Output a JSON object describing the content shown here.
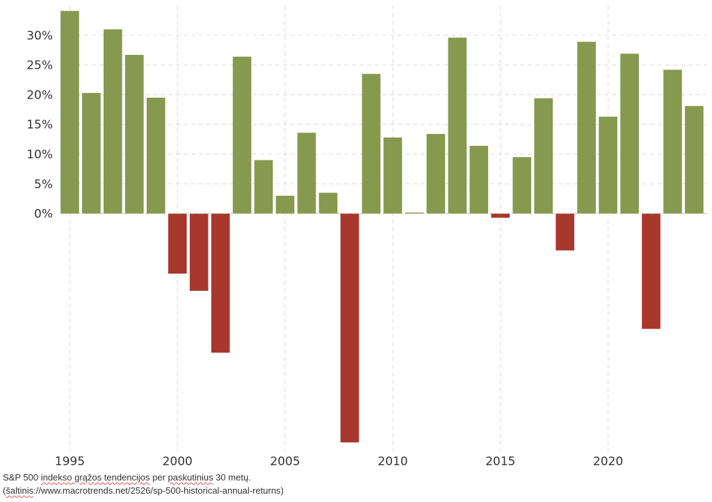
{
  "chart_data": {
    "type": "bar",
    "x": [
      1995,
      1996,
      1997,
      1998,
      1999,
      2000,
      2001,
      2002,
      2003,
      2004,
      2005,
      2006,
      2007,
      2008,
      2009,
      2010,
      2011,
      2012,
      2013,
      2014,
      2015,
      2016,
      2017,
      2018,
      2019,
      2020,
      2021,
      2022,
      2023,
      2024
    ],
    "values": [
      34.1,
      20.3,
      31.0,
      26.7,
      19.5,
      -10.1,
      -13.0,
      -23.4,
      26.4,
      9.0,
      3.0,
      13.6,
      3.5,
      -38.5,
      23.5,
      12.8,
      0.0,
      13.4,
      29.6,
      11.4,
      -0.7,
      9.5,
      19.4,
      -6.2,
      28.9,
      16.3,
      26.9,
      -19.4,
      24.2,
      18.1
    ],
    "xticks": [
      1995,
      2000,
      2005,
      2010,
      2015,
      2020
    ],
    "xtick_labels": [
      "1995",
      "2000",
      "2005",
      "2010",
      "2015",
      "2020"
    ],
    "yticks": [
      0,
      5,
      10,
      15,
      20,
      25,
      30
    ],
    "ytick_labels": [
      "0%",
      "5%",
      "10%",
      "15%",
      "20%",
      "25%",
      "30%"
    ],
    "ylim": [
      -40,
      35
    ],
    "xlim": [
      1994.6,
      2024.6
    ],
    "grid": true,
    "colors": {
      "positive": "#86994f",
      "negative": "#a8372d",
      "grid": "#d9d9d9",
      "zero_line": "#b7c28f"
    },
    "title": "",
    "xlabel": "",
    "ylabel": ""
  },
  "caption": {
    "line1_parts": [
      "S&P 500 ",
      "indekso grąžos tendencijos",
      " per ",
      "paskutinius",
      " 30 metų."
    ],
    "line2_parts": [
      "(",
      "šaltinis",
      "://www.macrotrends.net/2526/sp-500-historical-annual-returns)"
    ]
  }
}
